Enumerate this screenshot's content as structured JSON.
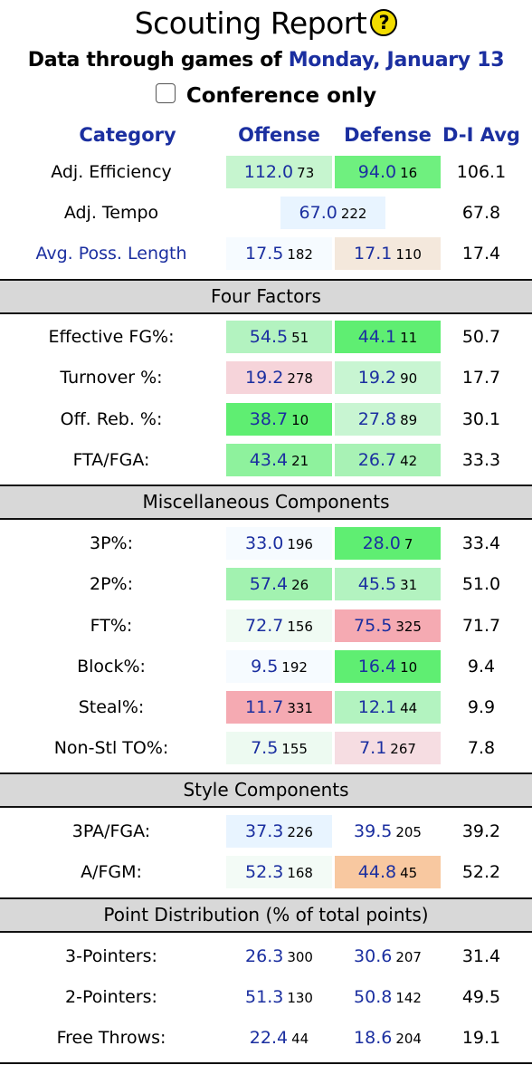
{
  "title": "Scouting Report",
  "help_glyph": "?",
  "subtitle_prefix": "Data through games of",
  "subtitle_date": "Monday, January 13",
  "conference_only_label": "Conference only",
  "headers": {
    "category": "Category",
    "offense": "Offense",
    "defense": "Defense",
    "avg": "D-I Avg"
  },
  "top_rows": [
    {
      "label": "Adj. Efficiency",
      "link": false,
      "off": {
        "v": "112.0",
        "r": "73",
        "bg": "#c6f5cf"
      },
      "def": {
        "v": "94.0",
        "r": "16",
        "bg": "#6ff07f"
      },
      "avg": "106.1"
    },
    {
      "label": "Adj. Tempo",
      "link": false,
      "tempo": {
        "v": "67.0",
        "r": "222",
        "bg": "#e8f4ff"
      },
      "avg": "67.8"
    },
    {
      "label": "Avg. Poss. Length",
      "link": true,
      "off": {
        "v": "17.5",
        "r": "182",
        "bg": "#f6fbff"
      },
      "def": {
        "v": "17.1",
        "r": "110",
        "bg": "#f4e8dc"
      },
      "avg": "17.4"
    }
  ],
  "sections": [
    {
      "title": "Four Factors",
      "rows": [
        {
          "label": "Effective FG%:",
          "off": {
            "v": "54.5",
            "r": "51",
            "bg": "#b3f3c0"
          },
          "def": {
            "v": "44.1",
            "r": "11",
            "bg": "#5fee72"
          },
          "avg": "50.7"
        },
        {
          "label": "Turnover %:",
          "off": {
            "v": "19.2",
            "r": "278",
            "bg": "#f6d4da"
          },
          "def": {
            "v": "19.2",
            "r": "90",
            "bg": "#c8f5d2"
          },
          "avg": "17.7"
        },
        {
          "label": "Off. Reb. %:",
          "off": {
            "v": "38.7",
            "r": "10",
            "bg": "#5fee72"
          },
          "def": {
            "v": "27.8",
            "r": "89",
            "bg": "#c8f5d2"
          },
          "avg": "30.1"
        },
        {
          "label": "FTA/FGA:",
          "off": {
            "v": "43.4",
            "r": "21",
            "bg": "#8ef29d"
          },
          "def": {
            "v": "26.7",
            "r": "42",
            "bg": "#a8f2b5"
          },
          "avg": "33.3"
        }
      ]
    },
    {
      "title": "Miscellaneous Components",
      "rows": [
        {
          "label": "3P%:",
          "off": {
            "v": "33.0",
            "r": "196",
            "bg": "#f6fbff"
          },
          "def": {
            "v": "28.0",
            "r": "7",
            "bg": "#5fee72"
          },
          "avg": "33.4"
        },
        {
          "label": "2P%:",
          "off": {
            "v": "57.4",
            "r": "26",
            "bg": "#a2f2b0"
          },
          "def": {
            "v": "45.5",
            "r": "31",
            "bg": "#b3f3c0"
          },
          "avg": "51.0"
        },
        {
          "label": "FT%:",
          "off": {
            "v": "72.7",
            "r": "156",
            "bg": "#f0fbf3"
          },
          "def": {
            "v": "75.5",
            "r": "325",
            "bg": "#f5aab2"
          },
          "avg": "71.7"
        },
        {
          "label": "Block%:",
          "off": {
            "v": "9.5",
            "r": "192",
            "bg": "#f6fbff"
          },
          "def": {
            "v": "16.4",
            "r": "10",
            "bg": "#5fee72"
          },
          "avg": "9.4"
        },
        {
          "label": "Steal%:",
          "off": {
            "v": "11.7",
            "r": "331",
            "bg": "#f5aab2"
          },
          "def": {
            "v": "12.1",
            "r": "44",
            "bg": "#b3f3c0"
          },
          "avg": "9.9"
        },
        {
          "label": "Non-Stl TO%:",
          "off": {
            "v": "7.5",
            "r": "155",
            "bg": "#edfaf1"
          },
          "def": {
            "v": "7.1",
            "r": "267",
            "bg": "#f6dde2"
          },
          "avg": "7.8"
        }
      ]
    },
    {
      "title": "Style Components",
      "rows": [
        {
          "label": "3PA/FGA:",
          "off": {
            "v": "37.3",
            "r": "226",
            "bg": "#e8f4ff"
          },
          "def": {
            "v": "39.5",
            "r": "205",
            "bg": "#ffffff"
          },
          "avg": "39.2"
        },
        {
          "label": "A/FGM:",
          "off": {
            "v": "52.3",
            "r": "168",
            "bg": "#f3fbf6"
          },
          "def": {
            "v": "44.8",
            "r": "45",
            "bg": "#f8c8a0"
          },
          "avg": "52.2"
        }
      ]
    },
    {
      "title": "Point Distribution (% of total points)",
      "rows": [
        {
          "label": "3-Pointers:",
          "off": {
            "v": "26.3",
            "r": "300",
            "bg": "#ffffff"
          },
          "def": {
            "v": "30.6",
            "r": "207",
            "bg": "#ffffff"
          },
          "avg": "31.4"
        },
        {
          "label": "2-Pointers:",
          "off": {
            "v": "51.3",
            "r": "130",
            "bg": "#ffffff"
          },
          "def": {
            "v": "50.8",
            "r": "142",
            "bg": "#ffffff"
          },
          "avg": "49.5"
        },
        {
          "label": "Free Throws:",
          "off": {
            "v": "22.4",
            "r": "44",
            "bg": "#ffffff"
          },
          "def": {
            "v": "18.6",
            "r": "204",
            "bg": "#ffffff"
          },
          "avg": "19.1"
        }
      ]
    }
  ]
}
